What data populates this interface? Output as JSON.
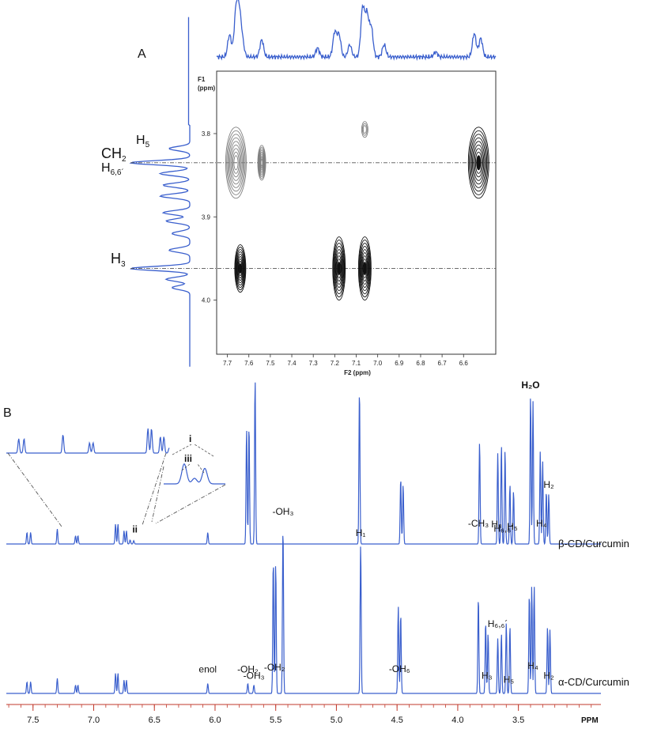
{
  "figure": {
    "panel_a_label": "A",
    "panel_b_label": "B",
    "colors": {
      "spectrum": "#3a5fcd",
      "contour_dark": "#111111",
      "contour_light": "#8a8a8a",
      "guide": "#555555"
    }
  },
  "chart_data": [
    {
      "type": "heatmap",
      "panel": "A",
      "title": "",
      "xlabel": "F2 (ppm)",
      "ylabel": "F1 (ppm)",
      "ylabel_line1": "F1",
      "ylabel_line2": "(ppm)",
      "xlim": [
        7.75,
        6.45
      ],
      "ylim": [
        3.725,
        4.065
      ],
      "x_ticks": [
        "7.7",
        "7.6",
        "7.5",
        "7.4",
        "7.3",
        "7.2",
        "7.1",
        "7.0",
        "6.9",
        "6.8",
        "6.7",
        "6.6"
      ],
      "x_tick_values": [
        7.7,
        7.6,
        7.5,
        7.4,
        7.3,
        7.2,
        7.1,
        7.0,
        6.9,
        6.8,
        6.7,
        6.6
      ],
      "y_ticks": [
        "3.8",
        "3.9",
        "4.0"
      ],
      "y_tick_values": [
        3.8,
        3.9,
        4.0
      ],
      "guide_lines_f1": [
        3.835,
        3.962
      ],
      "cross_peaks": [
        {
          "f2": 7.66,
          "f1": 3.835,
          "shade": "light",
          "size": "large"
        },
        {
          "f2": 7.54,
          "f1": 3.835,
          "shade": "light",
          "size": "small"
        },
        {
          "f2": 7.06,
          "f1": 3.795,
          "shade": "light",
          "size": "tiny"
        },
        {
          "f2": 6.53,
          "f1": 3.835,
          "shade": "dark",
          "size": "large"
        },
        {
          "f2": 7.64,
          "f1": 3.962,
          "shade": "dark",
          "size": "medium"
        },
        {
          "f2": 7.18,
          "f1": 3.962,
          "shade": "dark",
          "size": "tall"
        },
        {
          "f2": 7.06,
          "f1": 3.962,
          "shade": "dark",
          "size": "tall"
        }
      ],
      "f1_projection_labels": [
        {
          "label": "H",
          "sub": "5",
          "f1": 3.818
        },
        {
          "label": "CH",
          "sub": "2",
          "f1": 3.835
        },
        {
          "label": "H",
          "sub": "6,6´",
          "f1": 3.848
        },
        {
          "label": "H",
          "sub": "3",
          "f1": 3.958
        }
      ]
    },
    {
      "type": "line",
      "panel": "B",
      "title": "",
      "xlabel": "PPM",
      "ylabel": "",
      "xlim": [
        7.72,
        2.82
      ],
      "x_ticks": [
        "7.5",
        "7.0",
        "6.5",
        "6.0",
        "5.5",
        "5.0",
        "4.5",
        "4.0",
        "3.5"
      ],
      "x_tick_values": [
        7.5,
        7.0,
        6.5,
        6.0,
        5.5,
        5.0,
        4.5,
        4.0,
        3.5
      ],
      "series": [
        {
          "name": "β-CD/Curcumin",
          "peaks": [
            {
              "ppm": 7.55,
              "h": 0.07
            },
            {
              "ppm": 7.52,
              "h": 0.07
            },
            {
              "ppm": 7.3,
              "h": 0.09
            },
            {
              "ppm": 7.15,
              "h": 0.05
            },
            {
              "ppm": 7.13,
              "h": 0.05
            },
            {
              "ppm": 6.82,
              "h": 0.12
            },
            {
              "ppm": 6.8,
              "h": 0.12
            },
            {
              "ppm": 6.75,
              "h": 0.08
            },
            {
              "ppm": 6.73,
              "h": 0.08
            },
            {
              "ppm": 6.7,
              "h": 0.025
            },
            {
              "ppm": 6.67,
              "h": 0.02
            },
            {
              "ppm": 6.06,
              "h": 0.07
            },
            {
              "ppm": 5.74,
              "h": 0.7
            },
            {
              "ppm": 5.72,
              "h": 0.72
            },
            {
              "ppm": 5.67,
              "h": 1.0
            },
            {
              "ppm": 4.81,
              "h": 0.94
            },
            {
              "ppm": 4.47,
              "h": 0.4
            },
            {
              "ppm": 4.45,
              "h": 0.36
            },
            {
              "ppm": 3.82,
              "h": 0.62
            },
            {
              "ppm": 3.67,
              "h": 0.55
            },
            {
              "ppm": 3.64,
              "h": 0.6
            },
            {
              "ppm": 3.61,
              "h": 0.57
            },
            {
              "ppm": 3.57,
              "h": 0.36
            },
            {
              "ppm": 3.54,
              "h": 0.32
            },
            {
              "ppm": 3.4,
              "h": 0.9
            },
            {
              "ppm": 3.38,
              "h": 0.86
            },
            {
              "ppm": 3.32,
              "h": 0.56
            },
            {
              "ppm": 3.3,
              "h": 0.5
            },
            {
              "ppm": 3.27,
              "h": 0.32
            },
            {
              "ppm": 3.25,
              "h": 0.3
            }
          ],
          "annotations": [
            {
              "text": "H₂O",
              "bold": true,
              "ppm": 3.4
            },
            {
              "text": "-CH₃",
              "ppm": 3.83
            },
            {
              "text": "H₆,₆´",
              "ppm": 3.62
            },
            {
              "text": "H₃",
              "ppm": 3.68
            },
            {
              "text": "H₄",
              "ppm": 3.31
            },
            {
              "text": "H₅",
              "ppm": 3.55
            },
            {
              "text": "H₂",
              "ppm": 3.25
            },
            {
              "text": "ii",
              "bold": true,
              "ppm": 6.66
            }
          ],
          "inset_markers": [
            {
              "text": "i"
            },
            {
              "text": "iii"
            }
          ]
        },
        {
          "name": "α-CD/Curcumin",
          "peaks": [
            {
              "ppm": 7.55,
              "h": 0.07
            },
            {
              "ppm": 7.52,
              "h": 0.07
            },
            {
              "ppm": 7.3,
              "h": 0.09
            },
            {
              "ppm": 7.15,
              "h": 0.05
            },
            {
              "ppm": 7.13,
              "h": 0.05
            },
            {
              "ppm": 6.82,
              "h": 0.12
            },
            {
              "ppm": 6.8,
              "h": 0.12
            },
            {
              "ppm": 6.75,
              "h": 0.08
            },
            {
              "ppm": 6.73,
              "h": 0.08
            },
            {
              "ppm": 6.06,
              "h": 0.06
            },
            {
              "ppm": 5.73,
              "h": 0.06
            },
            {
              "ppm": 5.68,
              "h": 0.05
            },
            {
              "ppm": 5.52,
              "h": 0.8
            },
            {
              "ppm": 5.5,
              "h": 0.78
            },
            {
              "ppm": 5.44,
              "h": 1.0
            },
            {
              "ppm": 4.8,
              "h": 0.9
            },
            {
              "ppm": 4.49,
              "h": 0.52
            },
            {
              "ppm": 4.47,
              "h": 0.48
            },
            {
              "ppm": 3.83,
              "h": 0.58
            },
            {
              "ppm": 3.77,
              "h": 0.43
            },
            {
              "ppm": 3.75,
              "h": 0.36
            },
            {
              "ppm": 3.67,
              "h": 0.33
            },
            {
              "ppm": 3.64,
              "h": 0.36
            },
            {
              "ppm": 3.6,
              "h": 0.42
            },
            {
              "ppm": 3.57,
              "h": 0.4
            },
            {
              "ppm": 3.41,
              "h": 0.6
            },
            {
              "ppm": 3.39,
              "h": 0.64
            },
            {
              "ppm": 3.37,
              "h": 0.64
            },
            {
              "ppm": 3.26,
              "h": 0.4
            },
            {
              "ppm": 3.24,
              "h": 0.38
            }
          ],
          "annotations": [
            {
              "text": "-OH₂",
              "ppm": 5.51
            },
            {
              "text": "-OH₃",
              "ppm": 5.44
            },
            {
              "text": "H₁",
              "ppm": 4.8
            },
            {
              "text": "-OH₆",
              "ppm": 4.48
            },
            {
              "text": "H₃",
              "ppm": 3.76
            },
            {
              "text": "H₆,₆´",
              "ppm": 3.67
            },
            {
              "text": "H₅",
              "ppm": 3.58
            },
            {
              "text": "H₄",
              "ppm": 3.38
            },
            {
              "text": "H₂",
              "ppm": 3.25
            },
            {
              "text": "enol",
              "ppm": 6.06
            },
            {
              "text": "-OH₃",
              "ppm": 5.68
            },
            {
              "text": "-OH₂",
              "ppm": 5.73
            }
          ]
        }
      ]
    }
  ]
}
